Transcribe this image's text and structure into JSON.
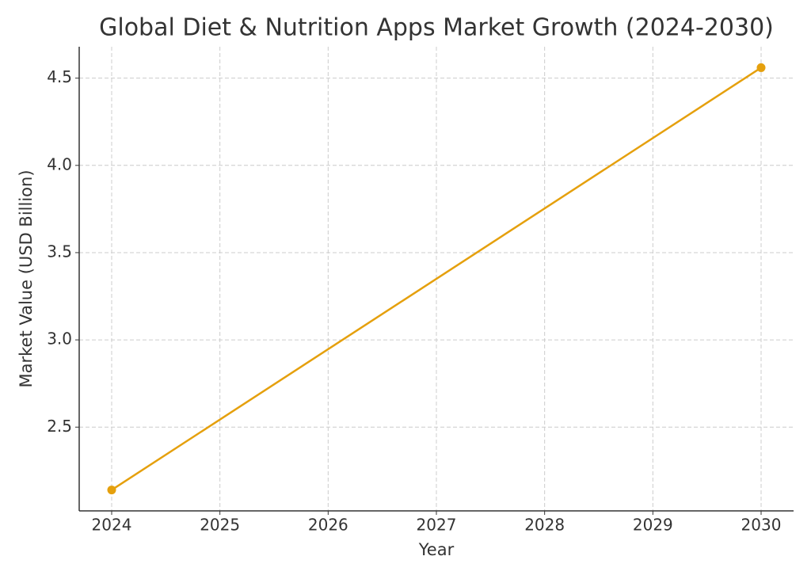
{
  "chart_data": {
    "type": "line",
    "title": "Global Diet & Nutrition Apps Market Growth (2024-2030)",
    "x_label": "Year",
    "y_label": "Market Value (USD Billion)",
    "x": [
      2024,
      2030
    ],
    "series": [
      {
        "color": "#e5a00d",
        "values": [
          2.14,
          4.56
        ]
      }
    ],
    "xlim": [
      2023.7,
      2030.3
    ],
    "xticks": [
      2024,
      2025,
      2026,
      2027,
      2028,
      2029,
      2030
    ],
    "ylim": [
      2.02,
      4.68
    ],
    "yticks": [
      {
        "value": 2.5,
        "label": "2.5"
      },
      {
        "value": 3,
        "label": "3.0"
      },
      {
        "value": 3.5,
        "label": "3.5"
      },
      {
        "value": 4,
        "label": "4.0"
      },
      {
        "value": 4.5,
        "label": "4.5"
      }
    ],
    "grid": true
  }
}
